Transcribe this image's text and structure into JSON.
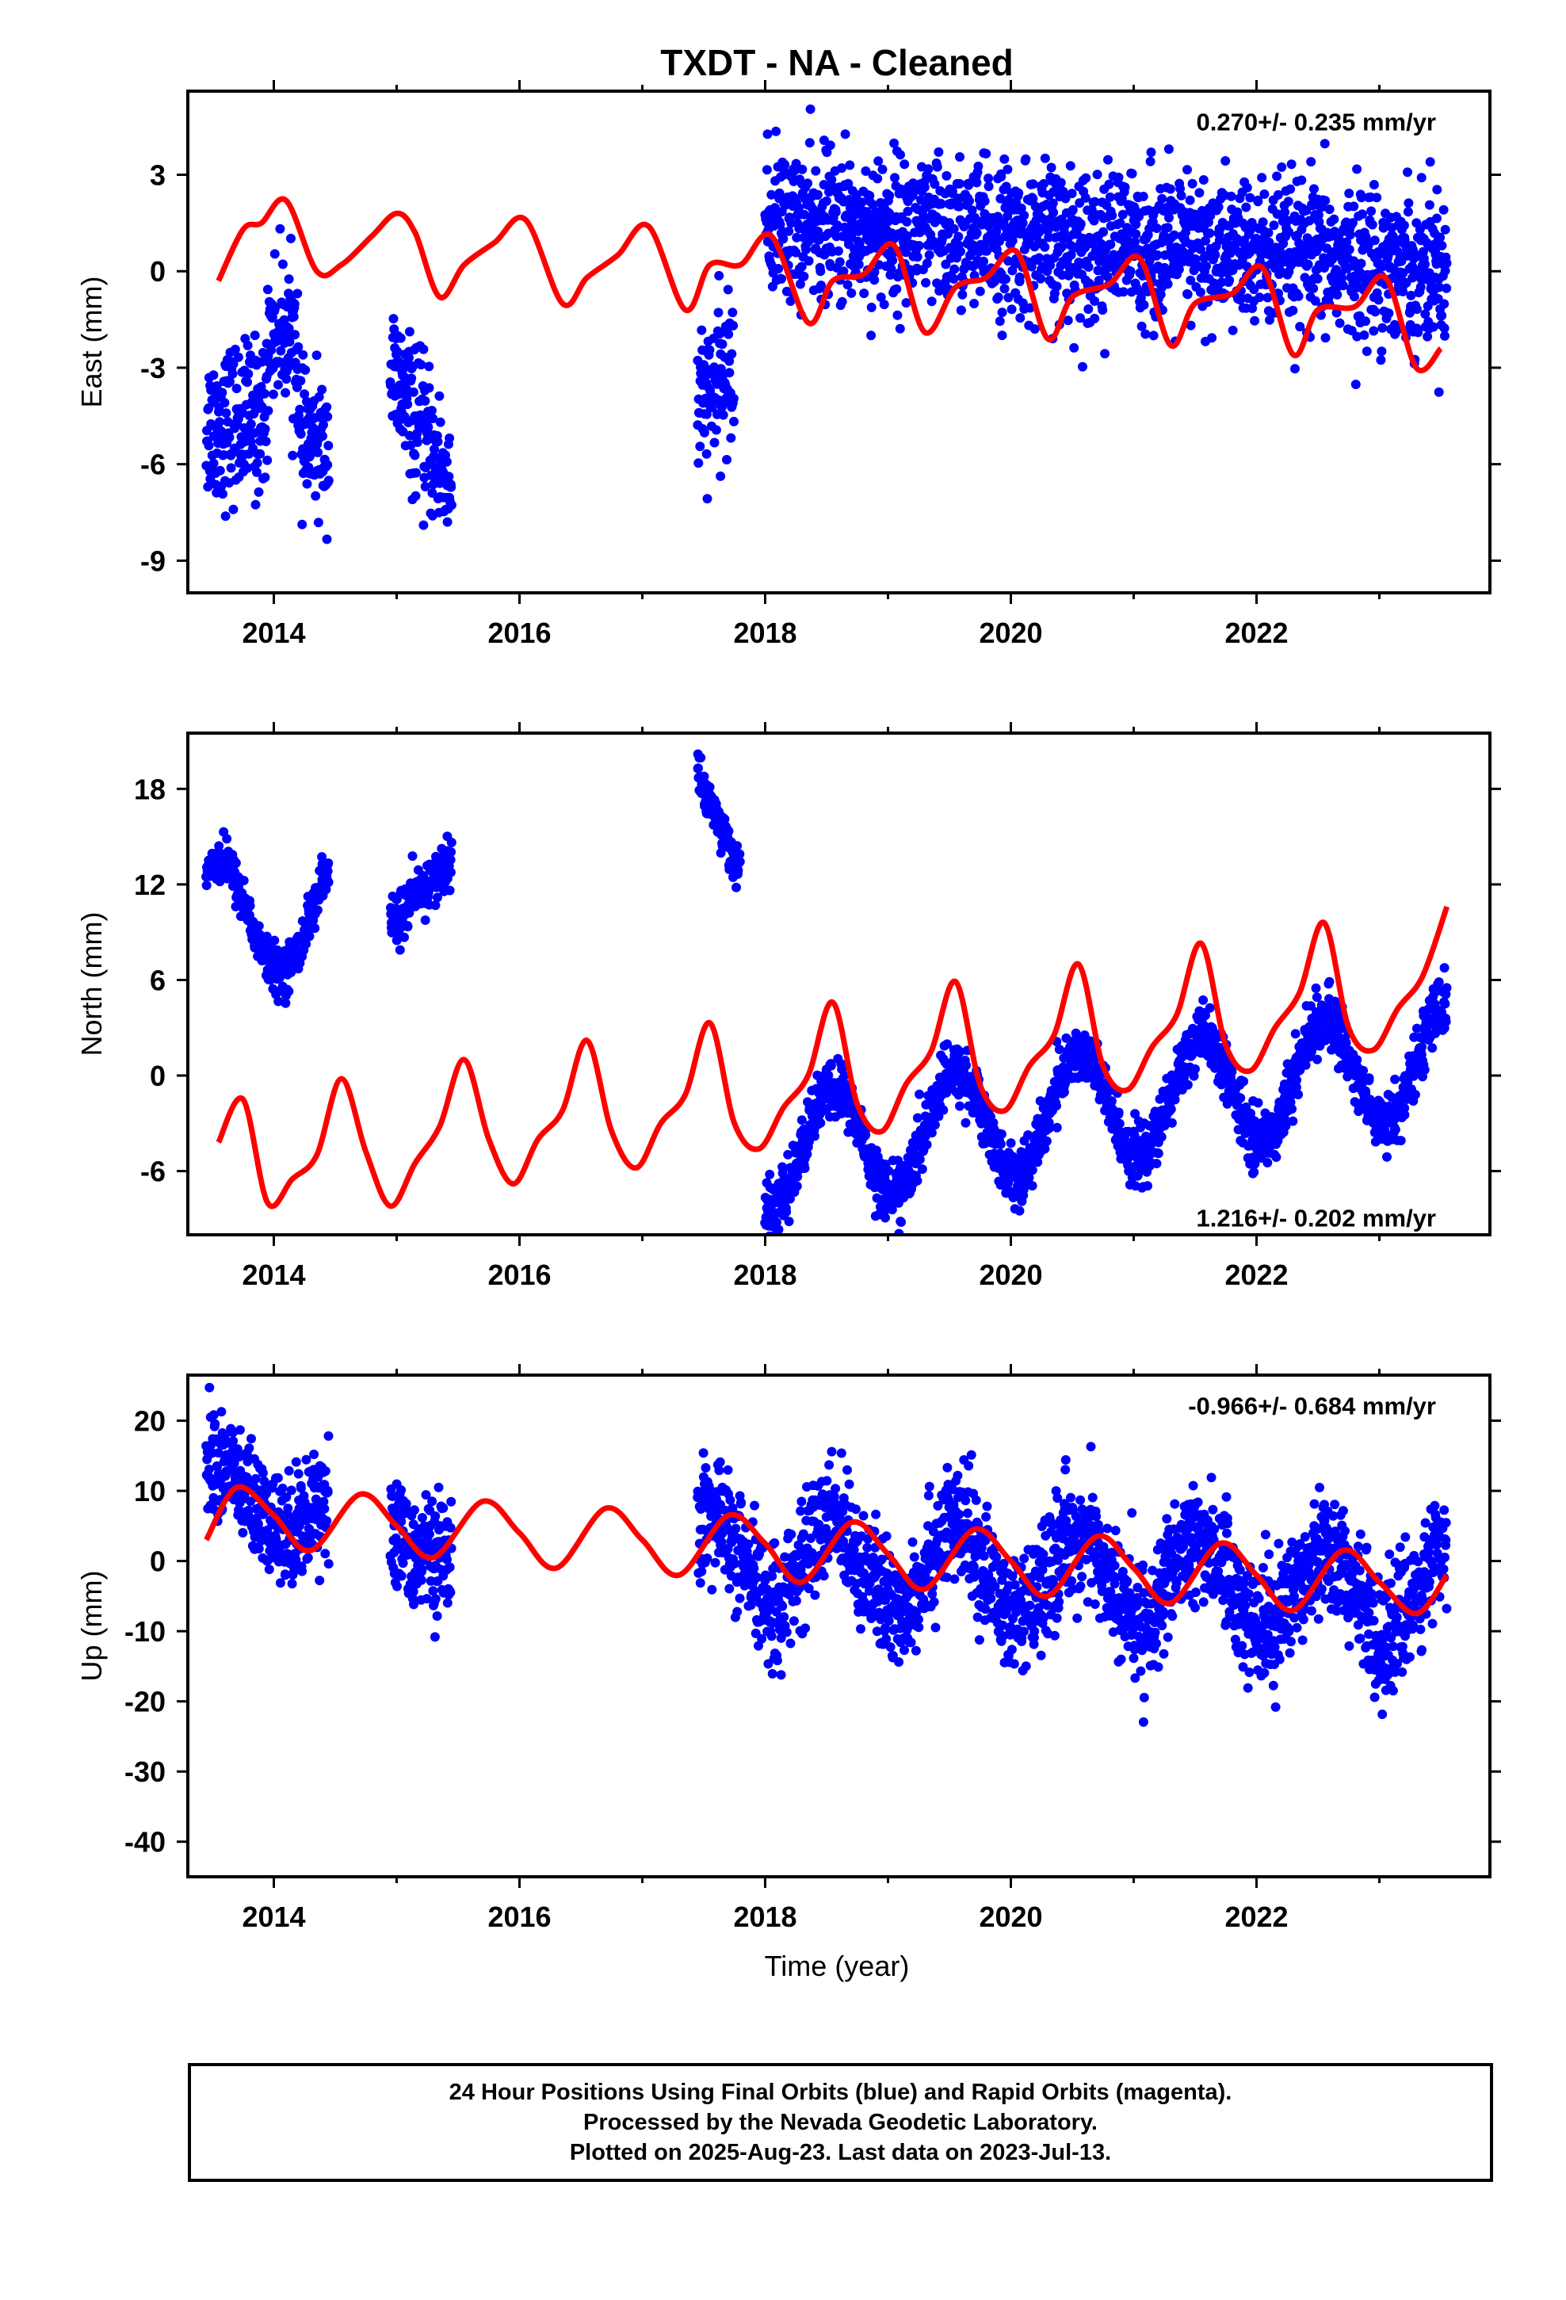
{
  "title": "TXDT  - NA - Cleaned",
  "xlabel": "Time (year)",
  "footer": {
    "line1": "24 Hour Positions Using Final Orbits (blue) and Rapid Orbits (magenta).",
    "line2": "Processed by the Nevada Geodetic Laboratory.",
    "line3": "Plotted on 2025-Aug-23. Last data on 2023-Jul-13."
  },
  "colors": {
    "points": "#0000ff",
    "model": "#ff0000",
    "frame": "#000000"
  },
  "chart_data": [
    {
      "type": "scatter",
      "ylabel": "East (mm)",
      "rate": "0.270+/- 0.235 mm/yr",
      "xlim": [
        2013.3,
        2023.9
      ],
      "ylim": [
        -10,
        5.6
      ],
      "xticks": [
        2014,
        2016,
        2018,
        2020,
        2022
      ],
      "yticks": [
        -9,
        -6,
        -3,
        0,
        3
      ],
      "series": [
        {
          "kind": "points",
          "segments": [
            {
              "start": 2013.45,
              "end": 2013.95,
              "base": -4.8,
              "slope": 0.5,
              "noise": 1.2
            },
            {
              "start": 2013.95,
              "end": 2014.2,
              "base": -1.8,
              "slope": -0.5,
              "noise": 1.1
            },
            {
              "start": 2014.2,
              "end": 2014.45,
              "base": -5.3,
              "slope": -0.6,
              "noise": 1.0
            },
            {
              "start": 2014.95,
              "end": 2015.45,
              "base": -3.2,
              "slope": -7.0,
              "noise": 1.1
            },
            {
              "start": 2017.45,
              "end": 2017.75,
              "base": -4.3,
              "slope": 4.5,
              "noise": 1.1
            },
            {
              "start": 2018.0,
              "end": 2023.55,
              "base": 1.5,
              "slope": -0.25,
              "noise": 1.15
            }
          ]
        },
        {
          "kind": "model",
          "x": [
            2013.55,
            2013.75,
            2013.9,
            2014.1,
            2014.35,
            2014.55,
            2014.8,
            2015.0,
            2015.15,
            2015.35,
            2015.55,
            2015.8,
            2016.05,
            2016.35,
            2016.55,
            2016.8,
            2017.05,
            2017.35,
            2017.55,
            2017.8,
            2018.05,
            2018.35,
            2018.55,
            2018.8,
            2019.05,
            2019.3,
            2019.55,
            2019.8,
            2020.05,
            2020.3,
            2020.5,
            2020.8,
            2021.05,
            2021.3,
            2021.5,
            2021.8,
            2022.05,
            2022.3,
            2022.5,
            2022.8,
            2023.05,
            2023.3,
            2023.5
          ],
          "y": [
            -0.3,
            1.3,
            1.5,
            2.2,
            0.0,
            0.2,
            1.1,
            1.8,
            1.2,
            -0.8,
            0.2,
            0.9,
            1.6,
            -1.0,
            -0.2,
            0.5,
            1.4,
            -1.2,
            0.2,
            0.2,
            1.1,
            -1.6,
            -0.3,
            -0.1,
            0.8,
            -1.9,
            -0.5,
            -0.2,
            0.6,
            -2.1,
            -0.8,
            -0.4,
            0.4,
            -2.3,
            -1.0,
            -0.7,
            0.1,
            -2.6,
            -1.2,
            -1.1,
            -0.2,
            -3.0,
            -2.4
          ]
        }
      ]
    },
    {
      "type": "scatter",
      "ylabel": "North (mm)",
      "rate": "1.216+/- 0.202 mm/yr",
      "xlim": [
        2013.3,
        2023.9
      ],
      "ylim": [
        -10,
        21.5
      ],
      "xticks": [
        2014,
        2016,
        2018,
        2020,
        2022
      ],
      "yticks": [
        -6,
        0,
        6,
        12,
        18
      ],
      "series": [
        {
          "kind": "points",
          "segments": [
            {
              "start": 2013.45,
              "end": 2014.45,
              "base": 10.0,
              "slope": 0,
              "season": 3.5,
              "noise": 0.7
            },
            {
              "start": 2014.95,
              "end": 2015.45,
              "base": 9.5,
              "slope": 8.0,
              "noise": 0.8
            },
            {
              "start": 2017.45,
              "end": 2017.8,
              "base": 19.0,
              "slope": -18.0,
              "noise": 0.7
            },
            {
              "start": 2018.0,
              "end": 2023.55,
              "base": -5.0,
              "slope": 1.1,
              "season": 3.5,
              "noise": 0.9
            }
          ]
        },
        {
          "kind": "model",
          "x": [
            2013.55,
            2013.75,
            2013.95,
            2014.15,
            2014.35,
            2014.55,
            2014.75,
            2014.95,
            2015.15,
            2015.35,
            2015.55,
            2015.75,
            2015.95,
            2016.15,
            2016.35,
            2016.55,
            2016.75,
            2016.95,
            2017.15,
            2017.35,
            2017.55,
            2017.75,
            2017.95,
            2018.15,
            2018.35,
            2018.55,
            2018.75,
            2018.95,
            2019.15,
            2019.35,
            2019.55,
            2019.75,
            2019.95,
            2020.15,
            2020.35,
            2020.55,
            2020.75,
            2020.95,
            2021.15,
            2021.35,
            2021.55,
            2021.75,
            2021.95,
            2022.15,
            2022.35,
            2022.55,
            2022.75,
            2022.95,
            2023.15,
            2023.35,
            2023.55
          ],
          "y": [
            -4.2,
            -1.5,
            -8.0,
            -6.5,
            -5.0,
            -0.2,
            -4.8,
            -8.2,
            -5.5,
            -3.2,
            1.0,
            -4.0,
            -6.8,
            -4.0,
            -2.2,
            2.2,
            -3.5,
            -5.8,
            -3.0,
            -1.2,
            3.3,
            -3.0,
            -4.6,
            -2.0,
            0.0,
            4.6,
            -1.8,
            -3.5,
            -0.5,
            1.5,
            5.9,
            -0.6,
            -2.2,
            0.6,
            2.5,
            7.0,
            0.6,
            -0.9,
            1.8,
            3.8,
            8.3,
            1.9,
            0.3,
            3.0,
            5.2,
            9.6,
            3.0,
            1.6,
            4.2,
            6.2,
            10.6
          ]
        }
      ]
    },
    {
      "type": "scatter",
      "ylabel": "Up (mm)",
      "rate": "-0.966+/- 0.684 mm/yr",
      "xlim": [
        2013.3,
        2023.9
      ],
      "ylim": [
        -45,
        26.5
      ],
      "xticks": [
        2014,
        2016,
        2018,
        2020,
        2022
      ],
      "yticks": [
        -40,
        -30,
        -20,
        -10,
        0,
        10,
        20
      ],
      "series": [
        {
          "kind": "points",
          "segments": [
            {
              "start": 2013.45,
              "end": 2014.45,
              "base": 10.0,
              "slope": -3.0,
              "season": 4.0,
              "noise": 4.0
            },
            {
              "start": 2014.95,
              "end": 2015.45,
              "base": 3.0,
              "slope": -6.0,
              "noise": 4.0
            },
            {
              "start": 2017.45,
              "end": 2023.55,
              "base": 0.5,
              "slope": -0.9,
              "season": 6.0,
              "noise": 4.2
            }
          ]
        },
        {
          "kind": "model",
          "x": [
            2013.45,
            2013.7,
            2014.0,
            2014.3,
            2014.7,
            2015.0,
            2015.3,
            2015.7,
            2016.0,
            2016.3,
            2016.7,
            2017.0,
            2017.3,
            2017.7,
            2018.0,
            2018.3,
            2018.7,
            2019.0,
            2019.3,
            2019.7,
            2020.0,
            2020.3,
            2020.7,
            2021.0,
            2021.3,
            2021.7,
            2022.0,
            2022.3,
            2022.7,
            2023.0,
            2023.3,
            2023.55
          ],
          "y": [
            3.0,
            10.5,
            6.5,
            1.5,
            9.5,
            5.0,
            0.5,
            8.5,
            4.0,
            -1.0,
            7.5,
            3.0,
            -2.0,
            6.5,
            2.5,
            -3.0,
            5.5,
            1.0,
            -4.0,
            4.5,
            0.0,
            -5.0,
            3.5,
            -1.0,
            -6.0,
            2.5,
            -2.0,
            -7.0,
            1.5,
            -3.0,
            -7.5,
            -2.0
          ]
        }
      ]
    }
  ]
}
